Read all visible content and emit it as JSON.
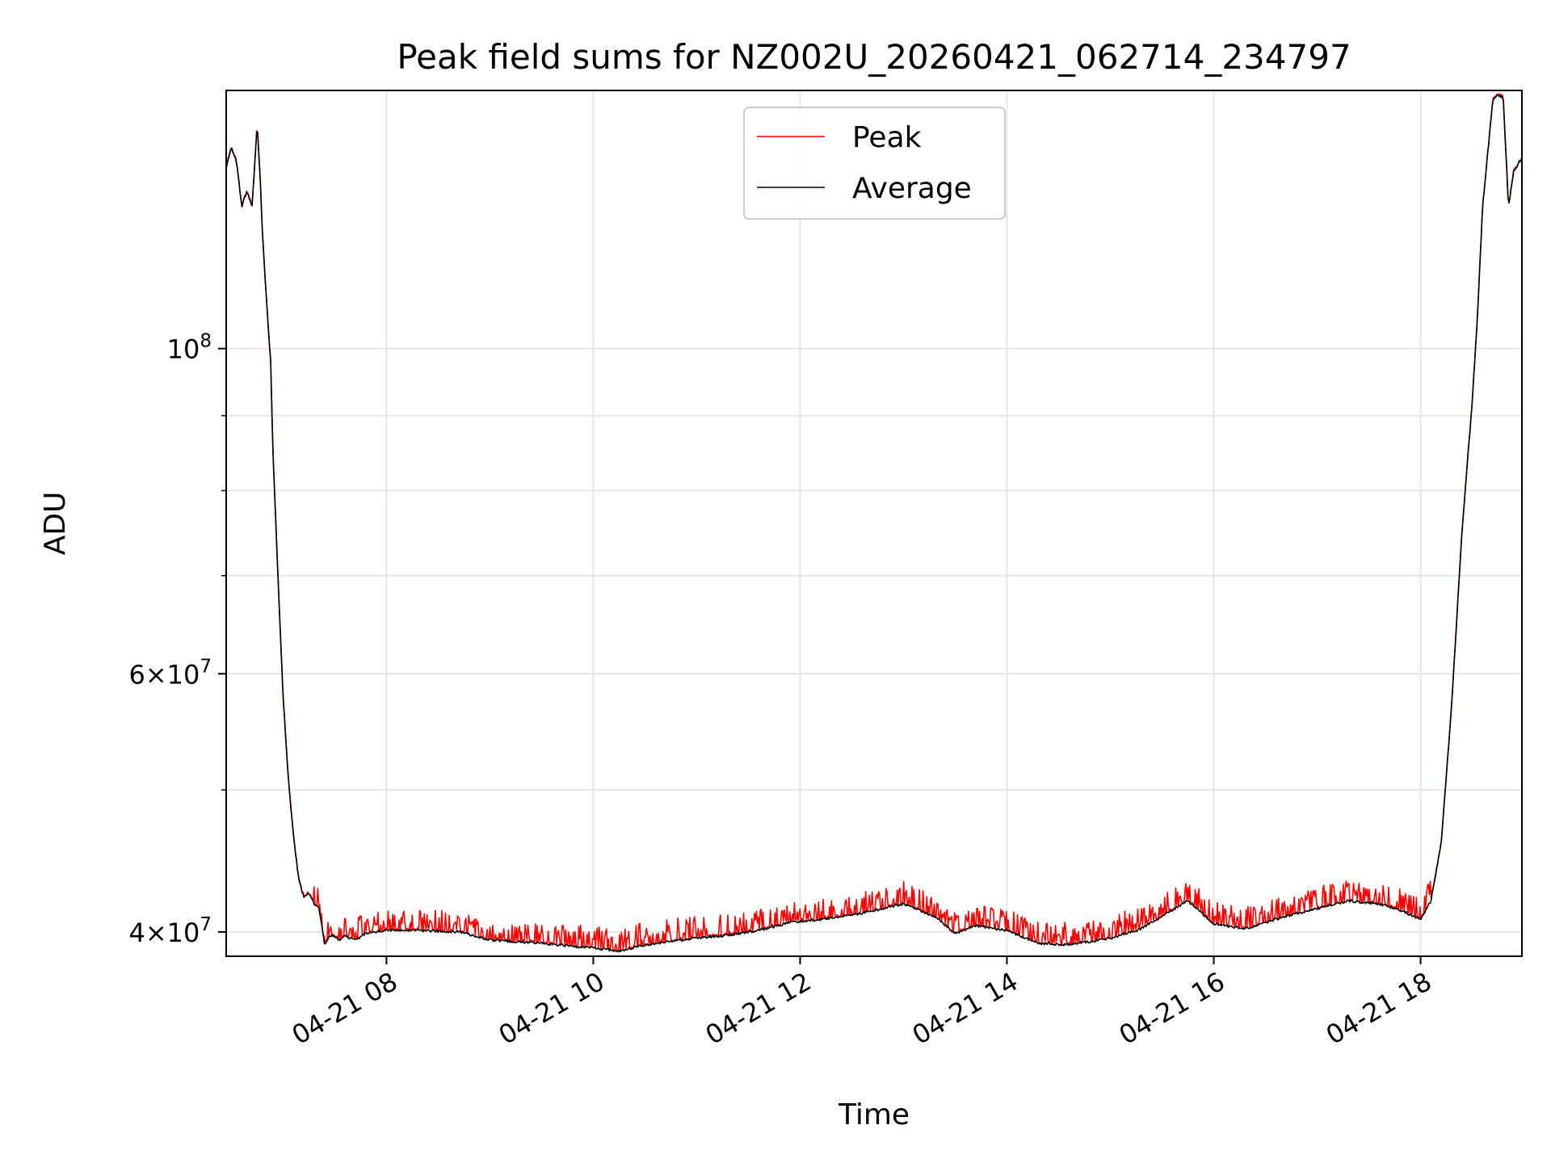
{
  "chart_data": {
    "type": "line",
    "title": "Peak field sums for NZ002U_20260421_062714_234797",
    "xlabel": "Time",
    "ylabel": "ADU",
    "yscale": "log",
    "xlim_hours": [
      6.45,
      18.98
    ],
    "ylim": [
      38500000,
      150000000
    ],
    "grid": true,
    "legend_position": "top-center",
    "x_ticks": [
      {
        "hour": 8,
        "label": "04-21 08"
      },
      {
        "hour": 10,
        "label": "04-21 10"
      },
      {
        "hour": 12,
        "label": "04-21 12"
      },
      {
        "hour": 14,
        "label": "04-21 14"
      },
      {
        "hour": 16,
        "label": "04-21 16"
      },
      {
        "hour": 18,
        "label": "04-21 18"
      }
    ],
    "y_major_ticks": [
      {
        "value": 100000000,
        "base": "10",
        "exponent": "8",
        "mantissa": ""
      },
      {
        "value": 60000000,
        "base": "10",
        "exponent": "7",
        "mantissa": "6"
      },
      {
        "value": 40000000,
        "base": "10",
        "exponent": "7",
        "mantissa": "4"
      }
    ],
    "y_minor_gridlines": [
      50000000,
      70000000,
      80000000,
      90000000
    ],
    "series": [
      {
        "name": "Peak",
        "color": "#ff0000",
        "note": "Peak follows Average with frequent upward spikes of ~0.5-3% above the average during the plateau"
      },
      {
        "name": "Average",
        "color": "#000000",
        "x_hours": [
          6.45,
          6.5,
          6.55,
          6.6,
          6.65,
          6.7,
          6.75,
          6.78,
          6.8,
          6.85,
          6.88,
          6.9,
          6.95,
          7.0,
          7.05,
          7.1,
          7.15,
          7.2,
          7.25,
          7.3,
          7.35,
          7.4,
          7.45,
          7.5,
          7.55,
          7.6,
          7.65,
          7.7,
          7.75,
          7.8,
          7.9,
          8.0,
          8.3,
          8.7,
          9.0,
          9.5,
          10.0,
          10.25,
          10.5,
          10.75,
          11.0,
          11.3,
          11.6,
          11.9,
          12.2,
          12.6,
          13.0,
          13.3,
          13.5,
          13.7,
          14.0,
          14.3,
          14.6,
          15.0,
          15.3,
          15.5,
          15.75,
          16.0,
          16.3,
          16.7,
          17.0,
          17.3,
          17.6,
          17.8,
          18.0,
          18.1,
          18.2,
          18.3,
          18.4,
          18.5,
          18.55,
          18.6,
          18.7,
          18.75,
          18.8,
          18.85,
          18.9,
          18.98
        ],
        "values": [
          133000000,
          137000000,
          134000000,
          125000000,
          128000000,
          125000000,
          142000000,
          130000000,
          120000000,
          105000000,
          98000000,
          86000000,
          70000000,
          58000000,
          51000000,
          46500000,
          43500000,
          42200000,
          42500000,
          41800000,
          41500000,
          39200000,
          39800000,
          39700000,
          39400000,
          39800000,
          39600000,
          39500000,
          39700000,
          39900000,
          40000000,
          40100000,
          40100000,
          40000000,
          39500000,
          39300000,
          39000000,
          38800000,
          39200000,
          39400000,
          39600000,
          39800000,
          40100000,
          40600000,
          40800000,
          41200000,
          41800000,
          41000000,
          39900000,
          40400000,
          40100000,
          39300000,
          39200000,
          39600000,
          40200000,
          41000000,
          42000000,
          40500000,
          40200000,
          41000000,
          41500000,
          42000000,
          41800000,
          41400000,
          40800000,
          42000000,
          46000000,
          57000000,
          75000000,
          92000000,
          105000000,
          125000000,
          148000000,
          149000000,
          148000000,
          125000000,
          132000000,
          135000000
        ]
      }
    ]
  }
}
